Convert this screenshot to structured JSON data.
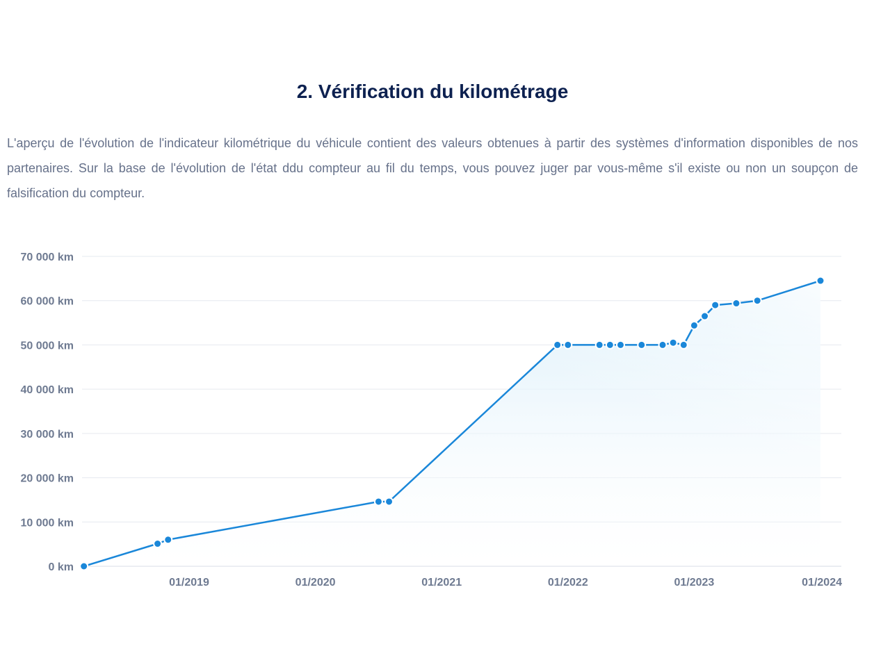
{
  "section": {
    "title": "2. Vérification du kilométrage",
    "description": "L'aperçu de l'évolution de l'indicateur kilométrique du véhicule contient des valeurs obtenues à partir des systèmes d'information disponibles de nos partenaires. Sur la base de l'évolution de l'état ddu compteur au fil du temps, vous pouvez juger par vous-même s'il existe ou non un soupçon de falsification du compteur."
  },
  "colors": {
    "line": "#1a87d9",
    "area_top": "#d9eefa",
    "grid": "#e6e9ef",
    "title": "#0d2150",
    "text": "#66718a"
  },
  "chart_data": {
    "type": "area",
    "title": "",
    "xlabel": "",
    "ylabel": "",
    "ylim": [
      0,
      70000
    ],
    "xlim": [
      "2018-03",
      "2024-01"
    ],
    "grid": true,
    "legend": "none",
    "y_ticks": [
      {
        "value": 0,
        "label": "0 km"
      },
      {
        "value": 10000,
        "label": "10 000 km"
      },
      {
        "value": 20000,
        "label": "20 000 km"
      },
      {
        "value": 30000,
        "label": "30 000 km"
      },
      {
        "value": 40000,
        "label": "40 000 km"
      },
      {
        "value": 50000,
        "label": "50 000 km"
      },
      {
        "value": 60000,
        "label": "60 000 km"
      },
      {
        "value": 70000,
        "label": "70 000 km"
      }
    ],
    "x_ticks": [
      {
        "date": "2019-01",
        "label": "01/2019"
      },
      {
        "date": "2020-01",
        "label": "01/2020"
      },
      {
        "date": "2021-01",
        "label": "01/2021"
      },
      {
        "date": "2022-01",
        "label": "01/2022"
      },
      {
        "date": "2023-01",
        "label": "01/2023"
      },
      {
        "date": "2024-01",
        "label": "01/2024"
      }
    ],
    "series": [
      {
        "points": [
          {
            "date": "2018-03",
            "km": 0
          },
          {
            "date": "2018-10",
            "km": 5100
          },
          {
            "date": "2018-11",
            "km": 6000
          },
          {
            "date": "2020-07",
            "km": 14600
          },
          {
            "date": "2020-08",
            "km": 14600
          },
          {
            "date": "2021-12",
            "km": 50000
          },
          {
            "date": "2022-01",
            "km": 50000
          },
          {
            "date": "2022-04",
            "km": 50000
          },
          {
            "date": "2022-05",
            "km": 50000
          },
          {
            "date": "2022-06",
            "km": 50000
          },
          {
            "date": "2022-08",
            "km": 50000
          },
          {
            "date": "2022-10",
            "km": 50000
          },
          {
            "date": "2022-11",
            "km": 50500
          },
          {
            "date": "2022-12",
            "km": 50000
          },
          {
            "date": "2023-01",
            "km": 54400
          },
          {
            "date": "2023-02",
            "km": 56500
          },
          {
            "date": "2023-03",
            "km": 59000
          },
          {
            "date": "2023-05",
            "km": 59400
          },
          {
            "date": "2023-07",
            "km": 60000
          },
          {
            "date": "2024-01",
            "km": 64500
          }
        ]
      }
    ]
  }
}
